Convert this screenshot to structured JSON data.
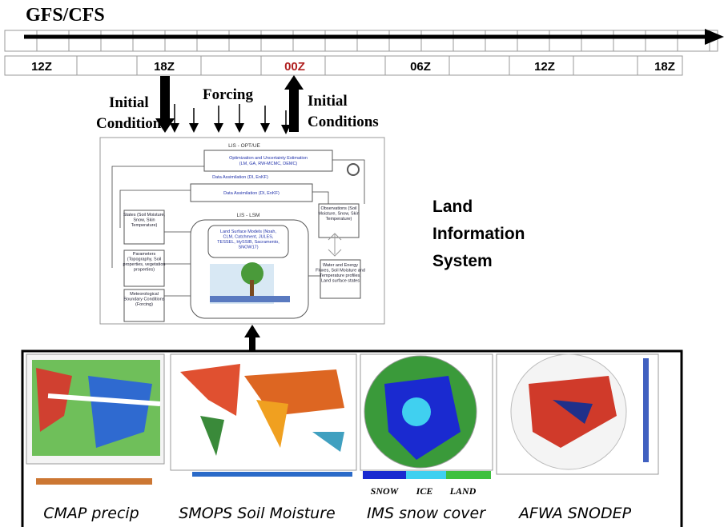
{
  "timeline": {
    "title": "GFS/CFS",
    "labels": [
      "12Z",
      "18Z",
      "00Z",
      "06Z",
      "12Z",
      "18Z"
    ]
  },
  "arrows": {
    "left": [
      "Initial",
      "Conditions"
    ],
    "forcing": "Forcing",
    "right": [
      "Initial",
      "Conditions"
    ]
  },
  "lis": {
    "title_lines": [
      "Land",
      "Information",
      "System"
    ],
    "opt_title": "LIS - OPT/UE",
    "opt_box": [
      "Optimization and Uncertainty Estimation",
      "(LM, GA, RW-MCMC, DEMC)"
    ],
    "da_top": "Data Assimilation (DI, EnKF)",
    "da_mid": "Data Assimilation (DI, EnKF)",
    "lsm_title": "LIS - LSM",
    "lsm_box": [
      "Land Surface Models (Noah,",
      "CLM, Catchment, JULES,",
      "TESSEL, HySSIB, Sacramento,",
      "SNOW17)"
    ],
    "states": [
      "States (Soil Moisture,",
      "Snow, Skin",
      "Temperature)"
    ],
    "parameters": [
      "Parameters",
      "(Topography, Soil",
      "properties, vegetation",
      "properties)"
    ],
    "met": [
      "Meteorological",
      "Boundary Conditions",
      "(Forcing)"
    ],
    "obs": [
      "Observations (Soil",
      "Moisture, Snow, Skin",
      "Temperature)"
    ],
    "outputs": [
      "Water and Energy",
      "Fluxes, Soil Moisture and",
      "Temperature profiles,",
      "Land surface states"
    ]
  },
  "products": {
    "ims_legend": [
      "SNOW",
      "ICE",
      "LAND"
    ],
    "captions": [
      "CMAP precip",
      "SMOPS Soil Moisture",
      "IMS snow cover",
      "AFWA SNODEP"
    ]
  }
}
